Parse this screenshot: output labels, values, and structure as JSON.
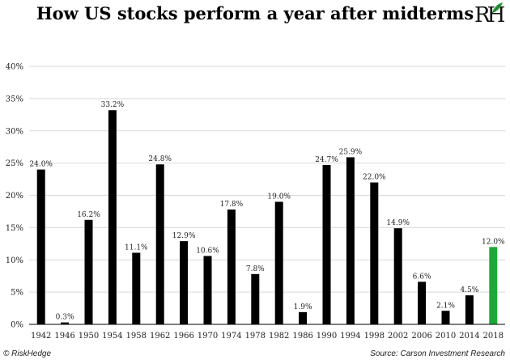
{
  "header": {
    "title": "How US stocks perform a year after midterms",
    "logo_text": "RH"
  },
  "footer": {
    "copyright": "© RiskHedge",
    "source": "Source: Carson Investment Research"
  },
  "colors": {
    "bar": "#000000",
    "highlight": "#1fa83a",
    "grid": "#d9d9d9",
    "axis": "#000000"
  },
  "chart_data": {
    "type": "bar",
    "title": "How US stocks perform a year after midterms",
    "xlabel": "",
    "ylabel": "",
    "ylim": [
      0,
      40
    ],
    "yticks": [
      "0%",
      "5%",
      "10%",
      "15%",
      "20%",
      "25%",
      "30%",
      "35%",
      "40%"
    ],
    "grid": "horizontal",
    "categories": [
      "1942",
      "1946",
      "1950",
      "1954",
      "1958",
      "1962",
      "1966",
      "1970",
      "1974",
      "1978",
      "1982",
      "1986",
      "1990",
      "1994",
      "1998",
      "2002",
      "2006",
      "2010",
      "2014",
      "2018"
    ],
    "values": [
      24.0,
      0.3,
      16.2,
      33.2,
      11.1,
      24.8,
      12.9,
      10.6,
      17.8,
      7.8,
      19.0,
      1.9,
      24.7,
      25.9,
      22.0,
      14.9,
      6.6,
      2.1,
      4.5,
      12.0
    ],
    "data_labels": [
      "24.0%",
      "0.3%",
      "16.2%",
      "33.2%",
      "11.1%",
      "24.8%",
      "12.9%",
      "10.6%",
      "17.8%",
      "7.8%",
      "19.0%",
      "1.9%",
      "24.7%",
      "25.9%",
      "22.0%",
      "14.9%",
      "6.6%",
      "2.1%",
      "4.5%",
      "12.0%"
    ],
    "highlight_category": "2018"
  }
}
